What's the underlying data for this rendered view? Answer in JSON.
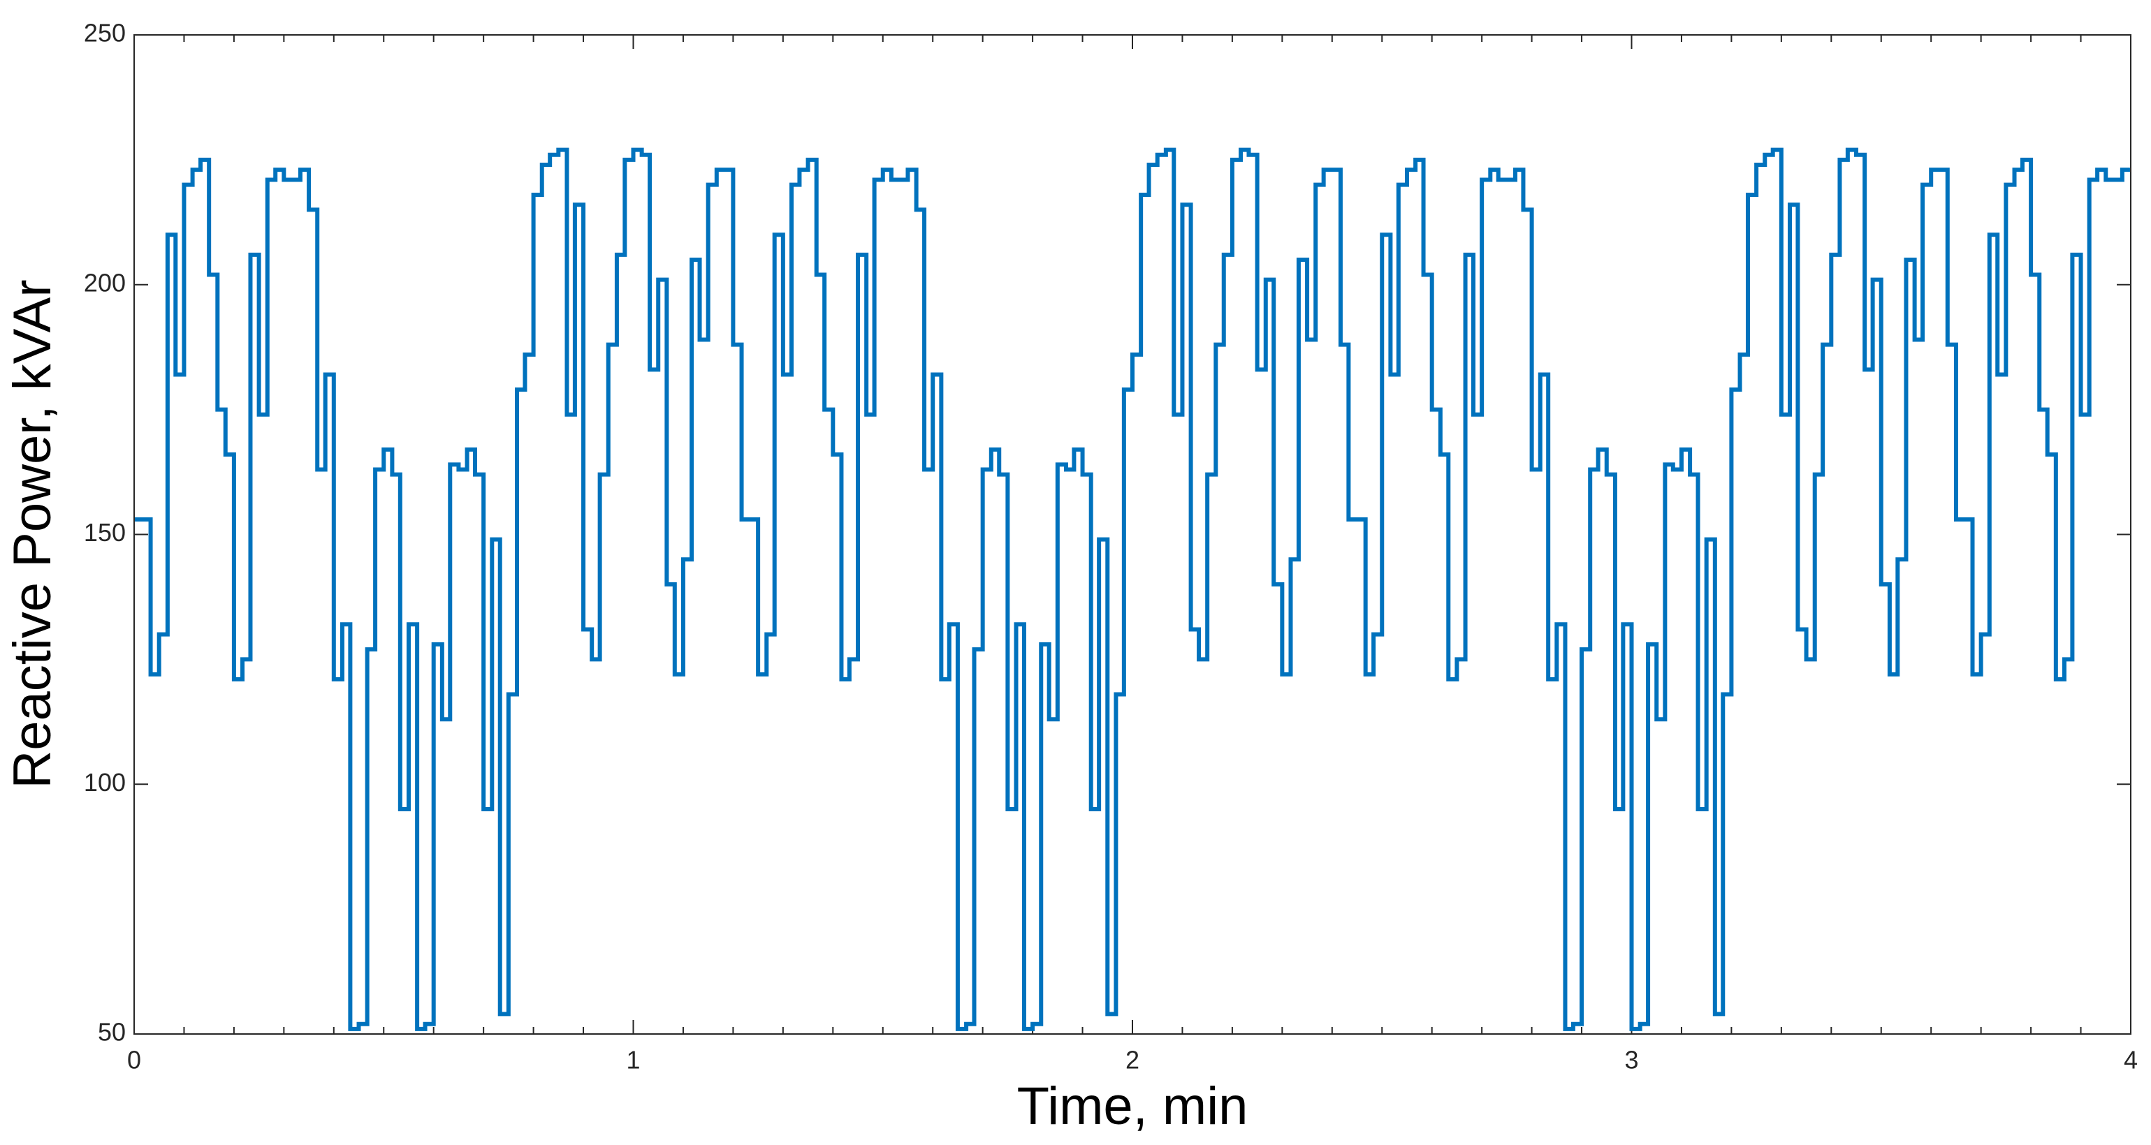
{
  "chart_data": {
    "type": "step",
    "x_label": "Time, min",
    "y_label": "Reactive Power, kVAr",
    "xlim": [
      0,
      4
    ],
    "ylim": [
      50,
      250
    ],
    "xticks": [
      0,
      1,
      2,
      3,
      4
    ],
    "yticks": [
      50,
      100,
      150,
      200,
      250
    ],
    "xminorticks": [
      0.1,
      0.2,
      0.3,
      0.4,
      0.5,
      0.6,
      0.7,
      0.8,
      0.9,
      1.1,
      1.2,
      1.3,
      1.4,
      1.5,
      1.6,
      1.7,
      1.8,
      1.9,
      2.1,
      2.2,
      2.3,
      2.4,
      2.5,
      2.6,
      2.7,
      2.8,
      2.9,
      3.1,
      3.2,
      3.3,
      3.4,
      3.5,
      3.6,
      3.7,
      3.8,
      3.9
    ],
    "color": "#0072bd",
    "x": [
      0,
      0.017,
      0.033,
      0.05,
      0.067,
      0.083,
      0.1,
      0.117,
      0.133,
      0.15,
      0.167,
      0.183,
      0.2,
      0.217,
      0.233,
      0.25,
      0.267,
      0.283,
      0.3,
      0.317,
      0.333,
      0.35,
      0.367,
      0.383,
      0.4,
      0.417,
      0.433,
      0.45,
      0.467,
      0.483,
      0.5,
      0.517,
      0.533,
      0.55,
      0.567,
      0.583,
      0.6,
      0.617,
      0.633,
      0.65,
      0.667,
      0.683,
      0.7,
      0.717,
      0.733,
      0.75,
      0.767,
      0.783,
      0.8,
      0.817,
      0.833,
      0.85,
      0.867,
      0.883,
      0.9,
      0.917,
      0.933,
      0.95,
      0.967,
      0.983,
      1,
      1.017,
      1.033,
      1.05,
      1.067,
      1.083,
      1.1,
      1.117,
      1.133,
      1.15,
      1.167,
      1.183,
      1.2,
      1.217,
      1.233,
      1.25,
      1.267,
      1.283,
      1.3,
      1.317,
      1.333,
      1.35,
      1.367,
      1.383,
      1.4,
      1.417,
      1.433,
      1.45,
      1.467,
      1.483,
      1.5,
      1.517,
      1.533,
      1.55,
      1.567,
      1.583,
      1.6,
      1.617,
      1.633,
      1.65,
      1.667,
      1.683,
      1.7,
      1.717,
      1.733,
      1.75,
      1.767,
      1.783,
      1.8,
      1.817,
      1.833,
      1.85,
      1.867,
      1.883,
      1.9,
      1.917,
      1.933,
      1.95,
      1.967,
      1.983,
      2,
      2.017,
      2.033,
      2.05,
      2.067,
      2.083,
      2.1,
      2.117,
      2.133,
      2.15,
      2.167,
      2.183,
      2.2,
      2.217,
      2.233,
      2.25,
      2.267,
      2.283,
      2.3,
      2.317,
      2.333,
      2.35,
      2.367,
      2.383,
      2.4,
      2.417,
      2.433,
      2.45,
      2.467,
      2.483,
      2.5,
      2.517,
      2.533,
      2.55,
      2.567,
      2.583,
      2.6,
      2.617,
      2.633,
      2.65,
      2.667,
      2.683,
      2.7,
      2.717,
      2.733,
      2.75,
      2.767,
      2.783,
      2.8,
      2.817,
      2.833,
      2.85,
      2.867,
      2.883,
      2.9,
      2.917,
      2.933,
      2.95,
      2.967,
      2.983,
      3,
      3.017,
      3.033,
      3.05,
      3.067,
      3.083,
      3.1,
      3.117,
      3.133,
      3.15,
      3.167,
      3.183,
      3.2,
      3.217,
      3.233,
      3.25,
      3.267,
      3.283,
      3.3,
      3.317,
      3.333,
      3.35,
      3.367,
      3.383,
      3.4,
      3.417,
      3.433,
      3.45,
      3.467,
      3.483,
      3.5,
      3.517,
      3.533,
      3.55,
      3.567,
      3.583,
      3.6,
      3.617,
      3.633,
      3.65,
      3.667,
      3.683,
      3.7,
      3.717,
      3.733,
      3.75,
      3.767,
      3.783,
      3.8,
      3.817,
      3.833,
      3.85,
      3.867,
      3.883,
      3.9,
      3.917,
      3.933,
      3.95,
      3.967,
      3.983
    ],
    "values": [
      153,
      153,
      122,
      130,
      210,
      182,
      220,
      223,
      225,
      202,
      175,
      166,
      121,
      125,
      206,
      174,
      221,
      223,
      221,
      221,
      223,
      215,
      163,
      182,
      121,
      132,
      51,
      52,
      127,
      163,
      167,
      162,
      95,
      132,
      51,
      52,
      128,
      113,
      164,
      163,
      167,
      162,
      95,
      149,
      54,
      118,
      179,
      186,
      218,
      224,
      226,
      227,
      174,
      216,
      131,
      125,
      162,
      188,
      206,
      225,
      227,
      226,
      183,
      201,
      140,
      122,
      145,
      205,
      189,
      220,
      223,
      223,
      188,
      153,
      153,
      122,
      130,
      210,
      182,
      220,
      223,
      225,
      202,
      175,
      166,
      121,
      125,
      206,
      174,
      221,
      223,
      221,
      221,
      223,
      215,
      163,
      182,
      121,
      132,
      51,
      52,
      127,
      163,
      167,
      162,
      95,
      132,
      51,
      52,
      128,
      113,
      164,
      163,
      167,
      162,
      95,
      149,
      54,
      118,
      179,
      186,
      218,
      224,
      226,
      227,
      174,
      216,
      131,
      125,
      162,
      188,
      206,
      225,
      227,
      226,
      183,
      201,
      140,
      122,
      145,
      205,
      189,
      220,
      223,
      223,
      188,
      153,
      153,
      122,
      130,
      210,
      182,
      220,
      223,
      225,
      202,
      175,
      166,
      121,
      125,
      206,
      174,
      221,
      223,
      221,
      221,
      223,
      215,
      163,
      182,
      121,
      132,
      51,
      52,
      127,
      163,
      167,
      162,
      95,
      132,
      51,
      52,
      128,
      113,
      164,
      163,
      167,
      162,
      95,
      149,
      54,
      118,
      179,
      186,
      218,
      224,
      226,
      227,
      174,
      216,
      131,
      125,
      162,
      188,
      206,
      225,
      227,
      226,
      183,
      201,
      140,
      122,
      145,
      205,
      189,
      220,
      223,
      223,
      188,
      153,
      153,
      122,
      130,
      210,
      182,
      220,
      223,
      225,
      202,
      175,
      166,
      121,
      125,
      206,
      174,
      221,
      223,
      221,
      221,
      223
    ]
  }
}
